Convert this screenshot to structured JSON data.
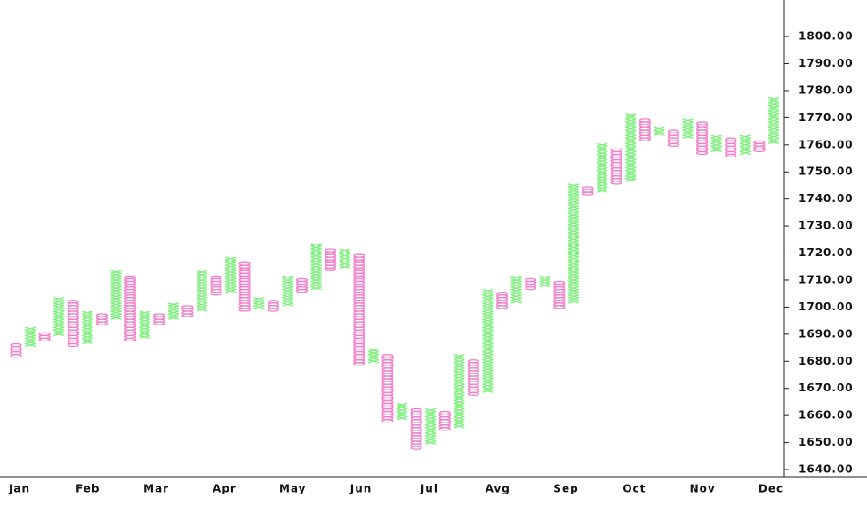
{
  "chart_data": {
    "type": "point-and-figure",
    "box_size": 1,
    "x_color": "#7ef07e",
    "o_color": "#f07ec8",
    "ylim": [
      1637.7,
      1813.5
    ],
    "yticks": [
      {
        "value": 1640,
        "label": "1640.00"
      },
      {
        "value": 1650,
        "label": "1650.00"
      },
      {
        "value": 1660,
        "label": "1660.00"
      },
      {
        "value": 1670,
        "label": "1670.00"
      },
      {
        "value": 1680,
        "label": "1680.00"
      },
      {
        "value": 1690,
        "label": "1690.00"
      },
      {
        "value": 1700,
        "label": "1700.00"
      },
      {
        "value": 1710,
        "label": "1710.00"
      },
      {
        "value": 1720,
        "label": "1720.00"
      },
      {
        "value": 1730,
        "label": "1730.00"
      },
      {
        "value": 1740,
        "label": "1740.00"
      },
      {
        "value": 1750,
        "label": "1750.00"
      },
      {
        "value": 1760,
        "label": "1760.00"
      },
      {
        "value": 1770,
        "label": "1770.00"
      },
      {
        "value": 1780,
        "label": "1780.00"
      },
      {
        "value": 1790,
        "label": "1790.00"
      },
      {
        "value": 1800,
        "label": "1800.00"
      }
    ],
    "categories": [
      "Jan",
      "Feb",
      "Mar",
      "Apr",
      "May",
      "Jun",
      "Jul",
      "Avg",
      "Sep",
      "Oct",
      "Nov",
      "Dec"
    ],
    "columns": [
      {
        "kind": "O",
        "low": 1682,
        "high": 1686
      },
      {
        "kind": "X",
        "low": 1686,
        "high": 1692
      },
      {
        "kind": "O",
        "low": 1688,
        "high": 1690
      },
      {
        "kind": "X",
        "low": 1690,
        "high": 1703
      },
      {
        "kind": "O",
        "low": 1686,
        "high": 1702
      },
      {
        "kind": "X",
        "low": 1687,
        "high": 1698
      },
      {
        "kind": "O",
        "low": 1694,
        "high": 1697
      },
      {
        "kind": "X",
        "low": 1696,
        "high": 1713
      },
      {
        "kind": "O",
        "low": 1688,
        "high": 1711
      },
      {
        "kind": "X",
        "low": 1689,
        "high": 1698
      },
      {
        "kind": "O",
        "low": 1694,
        "high": 1697
      },
      {
        "kind": "X",
        "low": 1696,
        "high": 1701
      },
      {
        "kind": "O",
        "low": 1697,
        "high": 1700
      },
      {
        "kind": "X",
        "low": 1699,
        "high": 1713
      },
      {
        "kind": "O",
        "low": 1705,
        "high": 1711
      },
      {
        "kind": "X",
        "low": 1706,
        "high": 1718
      },
      {
        "kind": "O",
        "low": 1699,
        "high": 1716
      },
      {
        "kind": "X",
        "low": 1700,
        "high": 1703
      },
      {
        "kind": "O",
        "low": 1699,
        "high": 1702
      },
      {
        "kind": "X",
        "low": 1701,
        "high": 1711
      },
      {
        "kind": "O",
        "low": 1706,
        "high": 1710
      },
      {
        "kind": "X",
        "low": 1707,
        "high": 1723
      },
      {
        "kind": "O",
        "low": 1714,
        "high": 1721
      },
      {
        "kind": "X",
        "low": 1715,
        "high": 1721
      },
      {
        "kind": "O",
        "low": 1679,
        "high": 1719
      },
      {
        "kind": "X",
        "low": 1680,
        "high": 1684
      },
      {
        "kind": "O",
        "low": 1658,
        "high": 1682
      },
      {
        "kind": "X",
        "low": 1659,
        "high": 1664
      },
      {
        "kind": "O",
        "low": 1648,
        "high": 1662
      },
      {
        "kind": "X",
        "low": 1650,
        "high": 1662
      },
      {
        "kind": "O",
        "low": 1655,
        "high": 1661
      },
      {
        "kind": "X",
        "low": 1656,
        "high": 1682
      },
      {
        "kind": "O",
        "low": 1668,
        "high": 1680
      },
      {
        "kind": "X",
        "low": 1669,
        "high": 1706
      },
      {
        "kind": "O",
        "low": 1700,
        "high": 1705
      },
      {
        "kind": "X",
        "low": 1702,
        "high": 1711
      },
      {
        "kind": "O",
        "low": 1707,
        "high": 1710
      },
      {
        "kind": "X",
        "low": 1708,
        "high": 1711
      },
      {
        "kind": "O",
        "low": 1700,
        "high": 1709
      },
      {
        "kind": "X",
        "low": 1702,
        "high": 1745
      },
      {
        "kind": "O",
        "low": 1742,
        "high": 1744
      },
      {
        "kind": "X",
        "low": 1743,
        "high": 1760
      },
      {
        "kind": "O",
        "low": 1746,
        "high": 1758
      },
      {
        "kind": "X",
        "low": 1747,
        "high": 1771
      },
      {
        "kind": "O",
        "low": 1762,
        "high": 1769
      },
      {
        "kind": "X",
        "low": 1764,
        "high": 1766
      },
      {
        "kind": "O",
        "low": 1760,
        "high": 1765
      },
      {
        "kind": "X",
        "low": 1763,
        "high": 1769
      },
      {
        "kind": "O",
        "low": 1757,
        "high": 1768
      },
      {
        "kind": "X",
        "low": 1758,
        "high": 1763
      },
      {
        "kind": "O",
        "low": 1756,
        "high": 1762
      },
      {
        "kind": "X",
        "low": 1757,
        "high": 1763
      },
      {
        "kind": "O",
        "low": 1758,
        "high": 1761
      },
      {
        "kind": "X",
        "low": 1761,
        "high": 1777
      }
    ]
  }
}
